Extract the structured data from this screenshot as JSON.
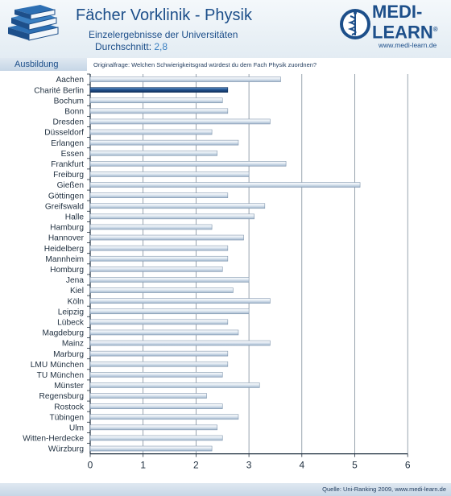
{
  "header": {
    "title": "Fächer Vorklinik - Physik",
    "subtitle": "Einzelergebnisse der Universitäten",
    "average_label": "Durchschnitt:",
    "average_value": "2,8"
  },
  "logo": {
    "brand_line1": "MEDI-",
    "brand_line2": "LEARN",
    "trademark": "®",
    "url": "www.medi-learn.de"
  },
  "tab": {
    "label": "Ausbildung"
  },
  "question": "Originalfrage: Welchen Schwierigkeitsgrad würdest du dem Fach Physik zuordnen?",
  "source": "Quelle: Uni-Ranking 2009, www.medi-learn.de",
  "colors": {
    "bar": "#b9c9da",
    "highlight": "#1f4f8b",
    "title": "#1d4f8a"
  },
  "chart_data": {
    "type": "bar",
    "orientation": "horizontal",
    "categories": [
      "Aachen",
      "Charité Berlin",
      "Bochum",
      "Bonn",
      "Dresden",
      "Düsseldorf",
      "Erlangen",
      "Essen",
      "Frankfurt",
      "Freiburg",
      "Gießen",
      "Göttingen",
      "Greifswald",
      "Halle",
      "Hamburg",
      "Hannover",
      "Heidelberg",
      "Mannheim",
      "Homburg",
      "Jena",
      "Kiel",
      "Köln",
      "Leipzig",
      "Lübeck",
      "Magdeburg",
      "Mainz",
      "Marburg",
      "LMU München",
      "TU München",
      "Münster",
      "Regensburg",
      "Rostock",
      "Tübingen",
      "Ulm",
      "Witten-Herdecke",
      "Würzburg"
    ],
    "values": [
      3.6,
      2.6,
      2.5,
      2.6,
      3.4,
      2.3,
      2.8,
      2.4,
      3.7,
      3.0,
      5.1,
      2.6,
      3.3,
      3.1,
      2.3,
      2.9,
      2.6,
      2.6,
      2.5,
      3.0,
      2.7,
      3.4,
      3.0,
      2.6,
      2.8,
      3.4,
      2.6,
      2.6,
      2.5,
      3.2,
      2.2,
      2.5,
      2.8,
      2.4,
      2.5,
      2.3
    ],
    "highlight": "Charité Berlin",
    "xlim": [
      0,
      6
    ],
    "xticks": [
      "0",
      "1",
      "2",
      "3",
      "4",
      "5",
      "6"
    ],
    "grid": true
  }
}
